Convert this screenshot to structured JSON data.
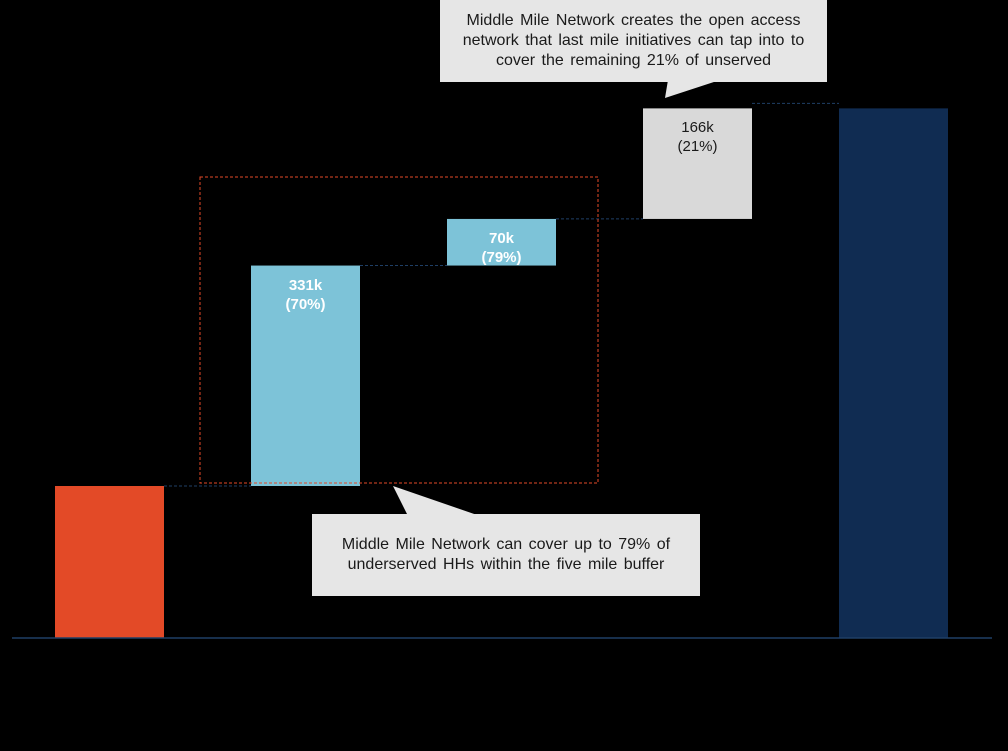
{
  "chart_data": {
    "type": "waterfall",
    "bars": [
      {
        "kind": "start",
        "value": 0,
        "label_value": "",
        "label_share": "",
        "color": "#e34a27"
      },
      {
        "kind": "increment",
        "value": 331,
        "label_value": "331k",
        "label_share": "(70%)",
        "color": "#7dc3d8"
      },
      {
        "kind": "increment",
        "value": 70,
        "label_value": "70k",
        "label_share": "(79%)",
        "color": "#7dc3d8"
      },
      {
        "kind": "increment",
        "value": 166,
        "label_value": "166k",
        "label_share": "(21%)",
        "color": "#d9d9d9"
      },
      {
        "kind": "total",
        "value": 0,
        "label_value": "",
        "label_share": "",
        "color": "#102c52"
      }
    ],
    "units": "k households",
    "axis_color": "#1f3f66"
  },
  "callouts": {
    "top": {
      "lines": [
        "Middle Mile Network creates the open access",
        "network that last mile initiatives can tap into to",
        "cover the remaining 21% of unserved"
      ]
    },
    "bottom": {
      "lines": [
        "Middle Mile Network can cover up to 79% of",
        "underserved HHs within the five mile buffer"
      ]
    }
  },
  "colors": {
    "callout_bg": "#e6e6e6",
    "highlight_box": "#e34a27",
    "connector": "#1f3f66"
  }
}
